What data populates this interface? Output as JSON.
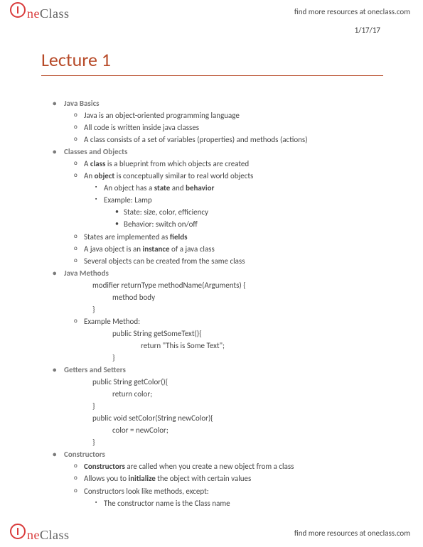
{
  "brand": {
    "one": "ne",
    "class": "Class",
    "tagline": "find more resources at oneclass.com"
  },
  "date": "1/17/17",
  "title": "Lecture 1",
  "s1": {
    "h": "Java Basics",
    "a": "Java is an object-oriented programming language",
    "b": "All code is written inside java classes",
    "c": "A class consists of a set of variables (properties) and methods (actions)"
  },
  "s2": {
    "h": "Classes and Objects",
    "a_pre": "A ",
    "a_bold": "class",
    "a_post": " is a blueprint from which objects are created",
    "b_pre": "An ",
    "b_bold": "object",
    "b_post": " is conceptually similar to real world objects",
    "b1_pre": "An object has a ",
    "b1_bold1": "state",
    "b1_mid": " and ",
    "b1_bold2": "behavior",
    "b2": "Example: Lamp",
    "b2a": "State: size, color, efficiency",
    "b2b": "Behavior: switch on/off",
    "c_pre": "States are implemented as ",
    "c_bold": "fields",
    "d_pre": "A java object is an ",
    "d_bold": "instance",
    "d_post": " of a java class",
    "e": "Several objects can be created from the same class"
  },
  "s3": {
    "h": "Java Methods",
    "l1": "modifier returnType methodName(Arguments) {",
    "l2": "method body",
    "l3": "}",
    "ex": "Example Method:",
    "e1": "public String getSomeText(){",
    "e2": "return \"This is Some Text\";",
    "e3": "}"
  },
  "s4": {
    "h": "Getters and Setters",
    "g1": "public String getColor(){",
    "g2": "return color;",
    "g3": "}",
    "s1": "public void setColor(String newColor){",
    "s2": "color = newColor;",
    "s3": "}"
  },
  "s5": {
    "h": "Constructors",
    "a_bold": "Constructors",
    "a_post": " are called when you create a new object from a class",
    "b_pre": "Allows you to ",
    "b_bold": "initialize",
    "b_post": " the object with certain values",
    "c": "Constructors look like methods, except:",
    "c1": "The constructor name is the Class name"
  }
}
